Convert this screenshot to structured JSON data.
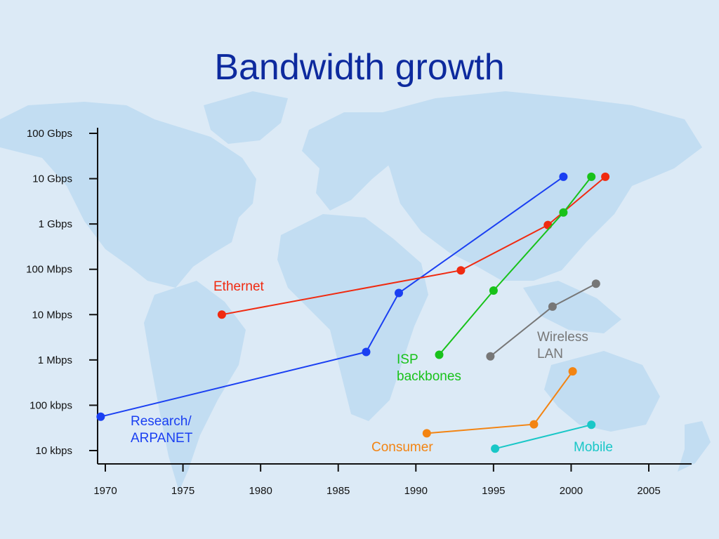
{
  "slide": {
    "title": "Bandwidth growth"
  },
  "chart_data": {
    "type": "line",
    "title": "Bandwidth growth",
    "xlabel": "",
    "ylabel": "",
    "y_scale": "log",
    "grid": false,
    "xlim": [
      1969.5,
      2007.5
    ],
    "ylim": [
      10,
      100000000
    ],
    "x_ticks": [
      1970,
      1975,
      1980,
      1985,
      1990,
      1995,
      2000,
      2005
    ],
    "y_ticks": [
      {
        "label": "10 kbps",
        "value": 10
      },
      {
        "label": "100 kbps",
        "value": 100
      },
      {
        "label": "1 Mbps",
        "value": 1000
      },
      {
        "label": "10 Mbps",
        "value": 10000
      },
      {
        "label": "100 Mbps",
        "value": 100000
      },
      {
        "label": "1 Gbps",
        "value": 1000000
      },
      {
        "label": "10 Gbps",
        "value": 10000000
      },
      {
        "label": "100 Gbps",
        "value": 100000000
      }
    ],
    "series": [
      {
        "name": "Research/ ARPANET",
        "label_lines": [
          "Research/",
          "ARPANET"
        ],
        "color": "#1a3ff2",
        "points": [
          [
            1969.7,
            56
          ],
          [
            1986.8,
            1500
          ],
          [
            1988.9,
            30000
          ],
          [
            1999.5,
            11000000
          ]
        ]
      },
      {
        "name": "Ethernet",
        "label_lines": [
          "Ethernet"
        ],
        "color": "#f02a10",
        "points": [
          [
            1977.5,
            10000
          ],
          [
            1992.9,
            95000
          ],
          [
            1998.5,
            950000
          ],
          [
            2002.2,
            11000000
          ]
        ]
      },
      {
        "name": "ISP backbones",
        "label_lines": [
          "ISP",
          "backbones"
        ],
        "color": "#18c21a",
        "points": [
          [
            1991.5,
            1300
          ],
          [
            1995,
            34000
          ],
          [
            1999.5,
            1800000
          ],
          [
            2001.3,
            11000000
          ]
        ]
      },
      {
        "name": "Wireless LAN",
        "label_lines": [
          "Wireless",
          "LAN"
        ],
        "color": "#777777",
        "points": [
          [
            1994.8,
            1200
          ],
          [
            1998.8,
            15000
          ],
          [
            2001.6,
            48000
          ]
        ]
      },
      {
        "name": "Consumer",
        "label_lines": [
          "Consumer"
        ],
        "color": "#f38412",
        "points": [
          [
            1990.7,
            24
          ],
          [
            1997.6,
            38
          ],
          [
            2000.1,
            560
          ]
        ]
      },
      {
        "name": "Mobile",
        "label_lines": [
          "Mobile"
        ],
        "color": "#19c7c7",
        "points": [
          [
            1995.1,
            11
          ],
          [
            2001.3,
            37
          ]
        ]
      }
    ]
  }
}
